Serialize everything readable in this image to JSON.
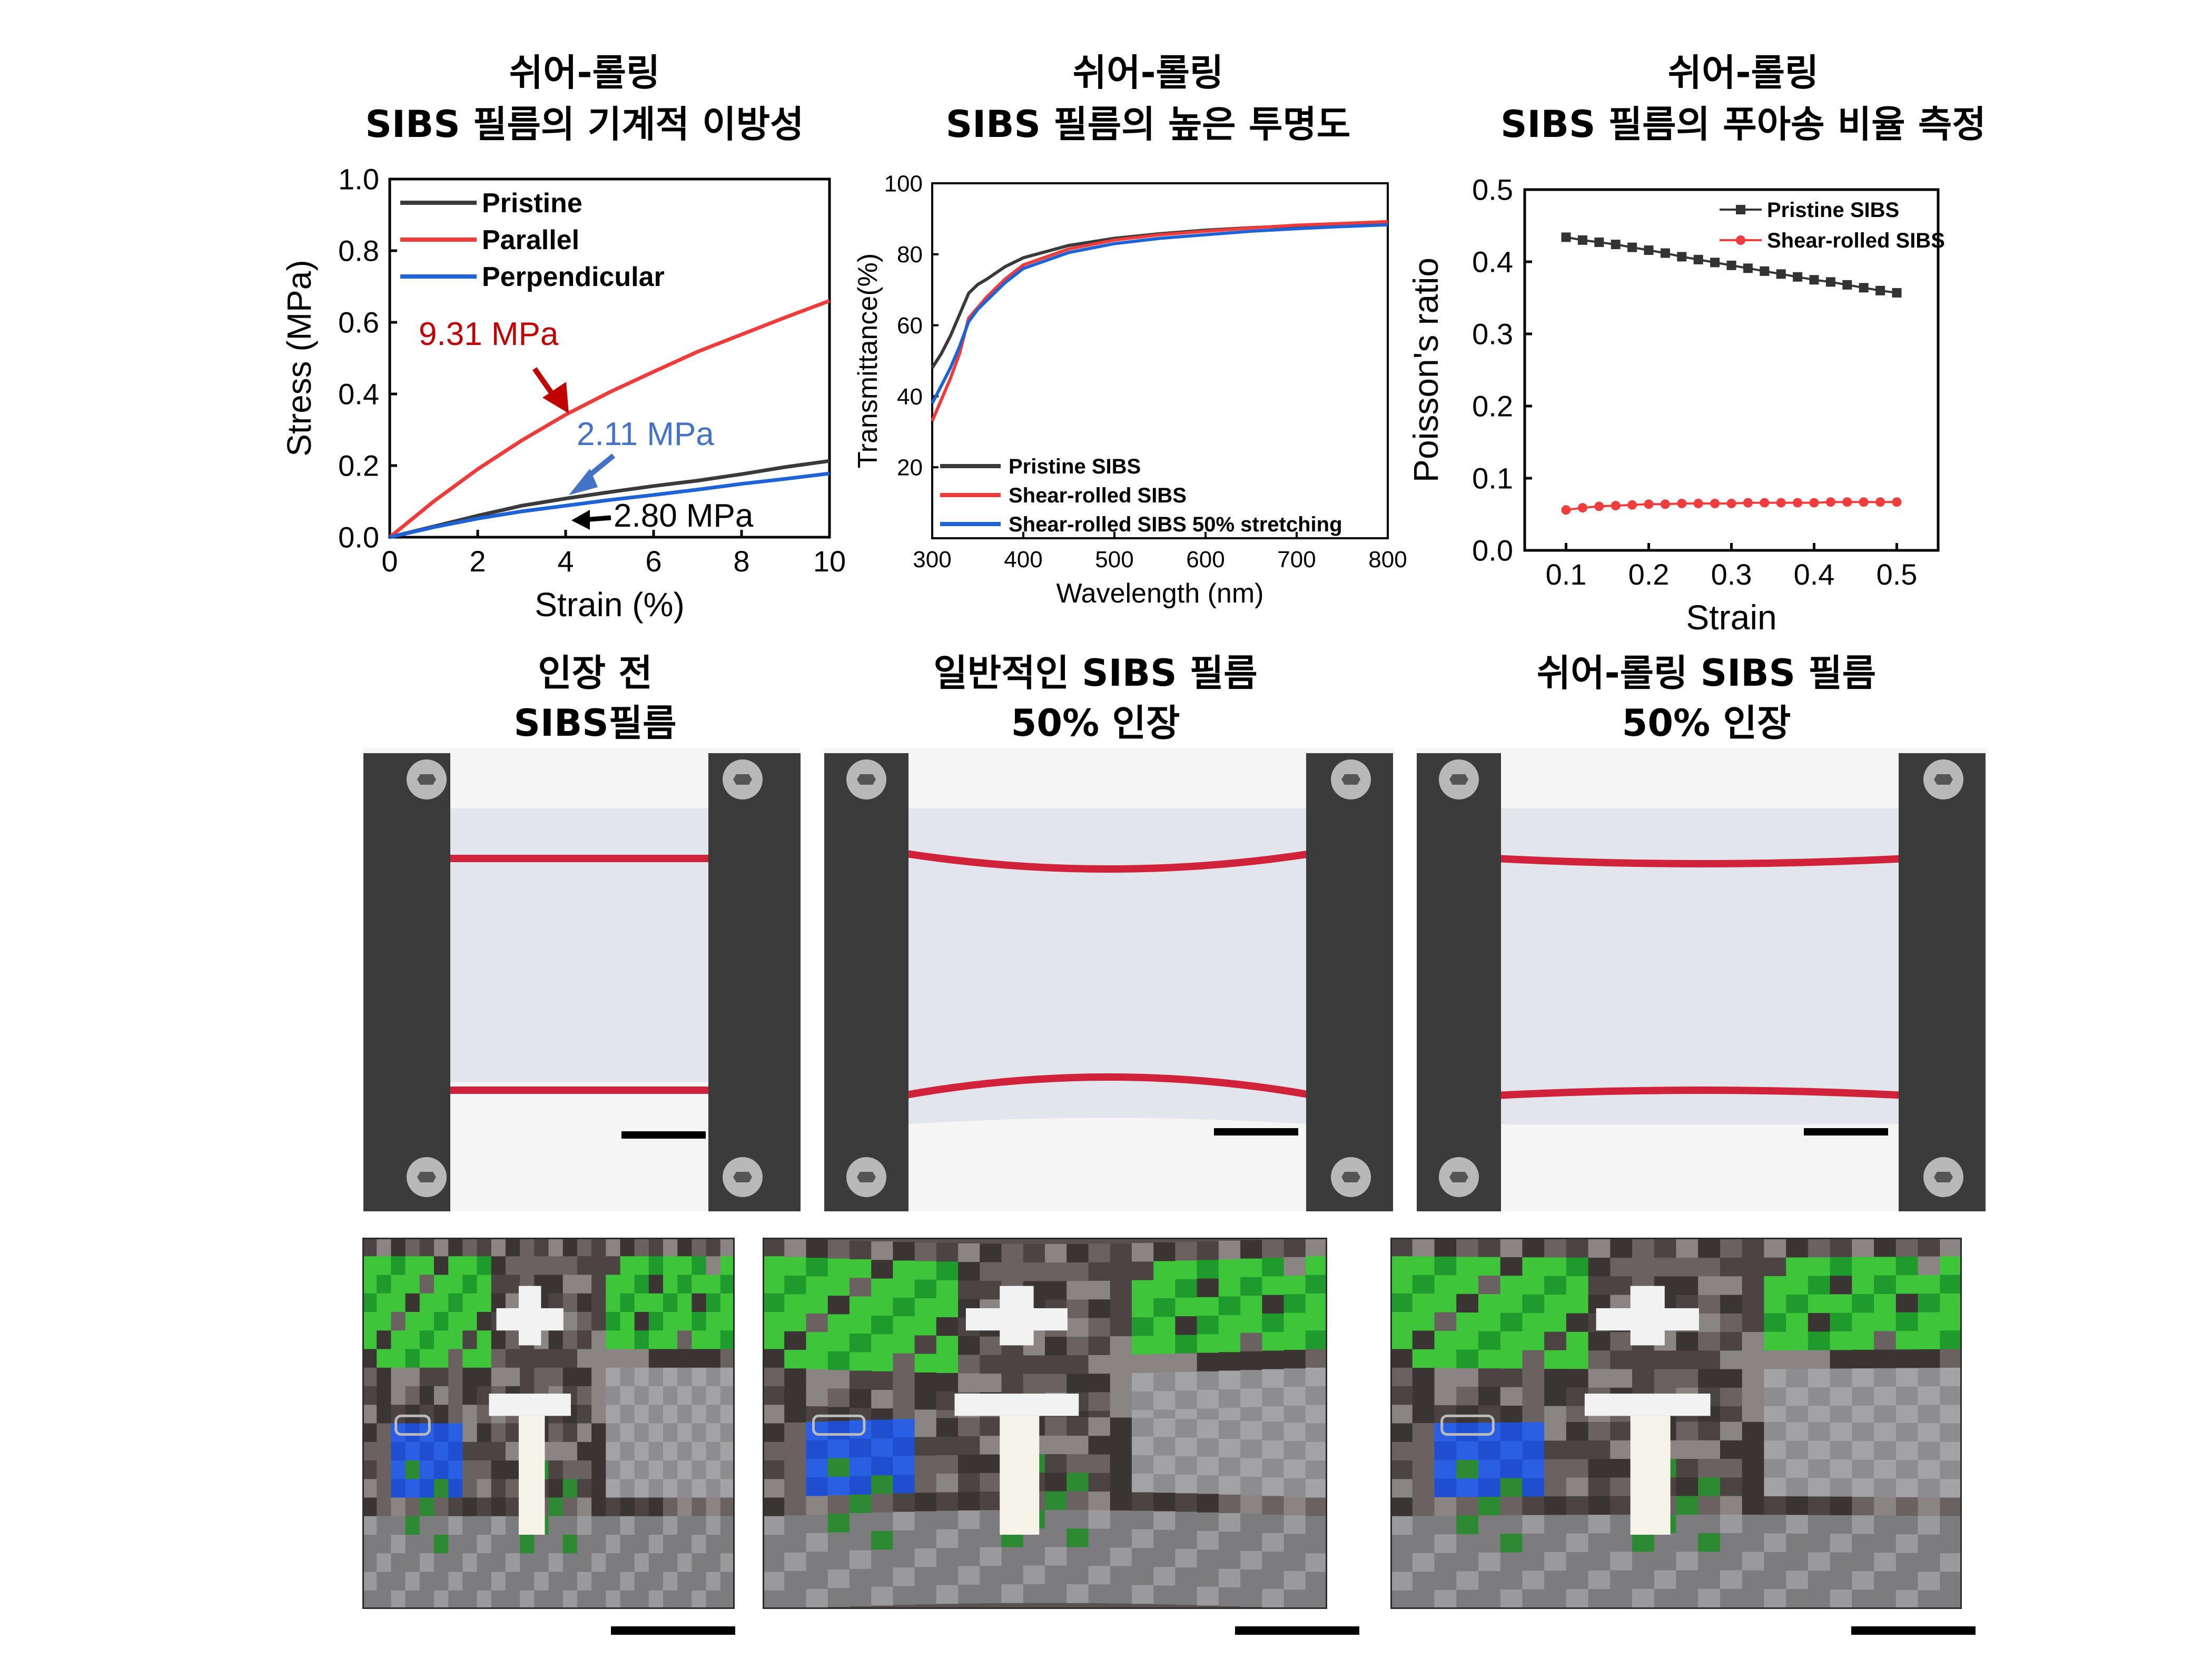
{
  "titles": {
    "p1_l1": "쉬어-롤링",
    "p1_l2": "SIBS 필름의 기계적 이방성",
    "p2_l1": "쉬어-롤링",
    "p2_l2": "SIBS 필름의 높은 투명도",
    "p3_l1": "쉬어-롤링",
    "p3_l2": "SIBS 필름의 푸아송 비율 측정",
    "r1_l1": "인장 전",
    "r1_l2": "SIBS필름",
    "r2_l1": "일반적인 SIBS 필름",
    "r2_l2": "50% 인장",
    "r3_l1": "쉬어-롤링 SIBS 필름",
    "r3_l2": "50% 인장"
  },
  "colors": {
    "pristine": "#3a3a3a",
    "parallel": "#ee3b3b",
    "perpendicular": "#1d63d6",
    "dark_red": "#c00000",
    "blue_annot": "#4472c4",
    "poisson_pristine": "#333333",
    "poisson_shear": "#f03c3c",
    "red_line": "#d0223a",
    "frame": "#3b3b3b",
    "film": "#dde1e8"
  },
  "icons": {
    "arrow": "arrow-icon",
    "screw": "screw-icon",
    "scale": "scale-bar"
  },
  "chart_data": [
    {
      "type": "line",
      "xlabel": "Strain (%)",
      "ylabel": "Stress (MPa)",
      "xlim": [
        0,
        10
      ],
      "ylim": [
        0,
        1.0
      ],
      "xticks": [
        0,
        2,
        4,
        6,
        8,
        10
      ],
      "yticks": [
        0.0,
        0.2,
        0.4,
        0.6,
        0.8,
        1.0
      ],
      "ytick_labels": [
        "0.0",
        "0.2",
        "0.4",
        "0.6",
        "0.8",
        "1.0"
      ],
      "legend_position": "top-left",
      "series": [
        {
          "name": "Pristine",
          "color": "#3a3a3a",
          "x": [
            0,
            1,
            2,
            3,
            4,
            5,
            6,
            7,
            8,
            9,
            10
          ],
          "y": [
            0,
            0.03,
            0.06,
            0.088,
            0.108,
            0.126,
            0.143,
            0.158,
            0.176,
            0.196,
            0.213
          ]
        },
        {
          "name": "Parallel",
          "color": "#ee3b3b",
          "x": [
            0,
            1,
            2,
            3,
            4,
            5,
            6,
            7,
            8,
            9,
            10
          ],
          "y": [
            0,
            0.1,
            0.19,
            0.27,
            0.342,
            0.405,
            0.462,
            0.518,
            0.566,
            0.614,
            0.66
          ]
        },
        {
          "name": "Perpendicular",
          "color": "#1d63d6",
          "x": [
            0,
            1,
            2,
            3,
            4,
            5,
            6,
            7,
            8,
            9,
            10
          ],
          "y": [
            0,
            0.028,
            0.052,
            0.072,
            0.088,
            0.104,
            0.118,
            0.133,
            0.149,
            0.163,
            0.178
          ]
        }
      ],
      "annotations": [
        {
          "text": "9.31 MPa",
          "color": "#c00000",
          "x": 4.5,
          "y": 0.34
        },
        {
          "text": "2.11 MPa",
          "color": "#4472c4",
          "x": 3.5,
          "y": 0.1
        },
        {
          "text": "2.80 MPa",
          "color": "#000000",
          "x": 4.0,
          "y": 0.04
        }
      ]
    },
    {
      "type": "line",
      "xlabel": "Wavelength (nm)",
      "ylabel": "Transmittance(%)",
      "xlim": [
        300,
        800
      ],
      "ylim": [
        0,
        100
      ],
      "xticks": [
        300,
        400,
        500,
        600,
        700,
        800
      ],
      "yticks": [
        20,
        40,
        60,
        80,
        100
      ],
      "legend_position": "bottom-left",
      "series": [
        {
          "name": "Pristine SIBS",
          "color": "#3a3a3a",
          "x": [
            300,
            310,
            320,
            330,
            340,
            350,
            360,
            380,
            400,
            450,
            500,
            550,
            600,
            650,
            700,
            750,
            800
          ],
          "y": [
            48,
            52,
            57,
            63,
            69,
            71.5,
            73,
            76.5,
            79,
            82.5,
            84.5,
            85.8,
            86.8,
            87.5,
            88,
            88.4,
            88.8
          ]
        },
        {
          "name": "Shear-rolled SIBS",
          "color": "#ee3b3b",
          "x": [
            300,
            310,
            320,
            330,
            340,
            350,
            360,
            380,
            400,
            450,
            500,
            550,
            600,
            650,
            700,
            750,
            800
          ],
          "y": [
            33,
            39,
            45,
            52,
            62,
            65,
            68,
            73,
            77,
            81.5,
            84,
            85.5,
            86.5,
            87.4,
            88.2,
            88.7,
            89.2
          ]
        },
        {
          "name": "Shear-rolled SIBS 50% stretching",
          "color": "#1d63d6",
          "x": [
            300,
            310,
            320,
            330,
            340,
            350,
            360,
            380,
            400,
            450,
            500,
            550,
            600,
            650,
            700,
            750,
            800
          ],
          "y": [
            38,
            43,
            48,
            54,
            61,
            64.5,
            67,
            72,
            76,
            80.5,
            83,
            84.5,
            85.5,
            86.5,
            87.2,
            87.8,
            88.3
          ]
        }
      ]
    },
    {
      "type": "scatter",
      "xlabel": "Strain",
      "ylabel": "Poisson's ratio",
      "xlim": [
        0.05,
        0.55
      ],
      "ylim": [
        0.0,
        0.5
      ],
      "xticks": [
        0.1,
        0.2,
        0.3,
        0.4,
        0.5
      ],
      "yticks": [
        0.0,
        0.1,
        0.2,
        0.3,
        0.4,
        0.5
      ],
      "ytick_labels": [
        "0.0",
        "0.1",
        "0.2",
        "0.3",
        "0.4",
        "0.5"
      ],
      "legend_position": "top-right",
      "series": [
        {
          "name": "Pristine SIBS",
          "color": "#333333",
          "marker": "square",
          "x": [
            0.1,
            0.12,
            0.14,
            0.16,
            0.18,
            0.2,
            0.22,
            0.24,
            0.26,
            0.28,
            0.3,
            0.32,
            0.34,
            0.36,
            0.38,
            0.4,
            0.42,
            0.44,
            0.46,
            0.48,
            0.5
          ],
          "y": [
            0.434,
            0.43,
            0.427,
            0.424,
            0.42,
            0.416,
            0.412,
            0.407,
            0.403,
            0.399,
            0.395,
            0.391,
            0.387,
            0.383,
            0.379,
            0.375,
            0.372,
            0.368,
            0.364,
            0.36,
            0.357
          ]
        },
        {
          "name": "Shear-rolled SIBS",
          "color": "#f03c3c",
          "marker": "circle",
          "x": [
            0.1,
            0.12,
            0.14,
            0.16,
            0.18,
            0.2,
            0.22,
            0.24,
            0.26,
            0.28,
            0.3,
            0.32,
            0.34,
            0.36,
            0.38,
            0.4,
            0.42,
            0.44,
            0.46,
            0.48,
            0.5
          ],
          "y": [
            0.056,
            0.059,
            0.061,
            0.062,
            0.063,
            0.064,
            0.064,
            0.065,
            0.065,
            0.065,
            0.065,
            0.066,
            0.066,
            0.066,
            0.066,
            0.066,
            0.067,
            0.067,
            0.067,
            0.067,
            0.067
          ]
        }
      ]
    }
  ]
}
